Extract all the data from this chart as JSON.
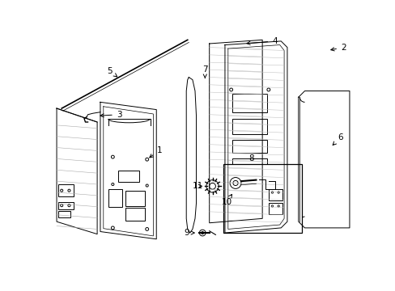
{
  "background_color": "#ffffff",
  "line_color": "#000000",
  "fig_width": 4.89,
  "fig_height": 3.6,
  "dpi": 100,
  "labels": {
    "1": [
      1,
      "1",
      162,
      198,
      148,
      210
    ],
    "2": [
      2,
      "2",
      462,
      22,
      438,
      30
    ],
    "3": [
      3,
      "3",
      110,
      128,
      78,
      138
    ],
    "4": [
      4,
      "4",
      355,
      12,
      320,
      22
    ],
    "5": [
      5,
      "5",
      95,
      60,
      95,
      75
    ],
    "6": [
      6,
      "6",
      462,
      175,
      450,
      185
    ],
    "7": [
      7,
      "7",
      248,
      58,
      248,
      72
    ],
    "8": [
      8,
      "8",
      322,
      200,
      322,
      210
    ],
    "9": [
      9,
      "9",
      218,
      318,
      237,
      318
    ],
    "10": [
      10,
      "10",
      280,
      268,
      280,
      278
    ],
    "11": [
      11,
      "11",
      235,
      243,
      252,
      243
    ]
  }
}
